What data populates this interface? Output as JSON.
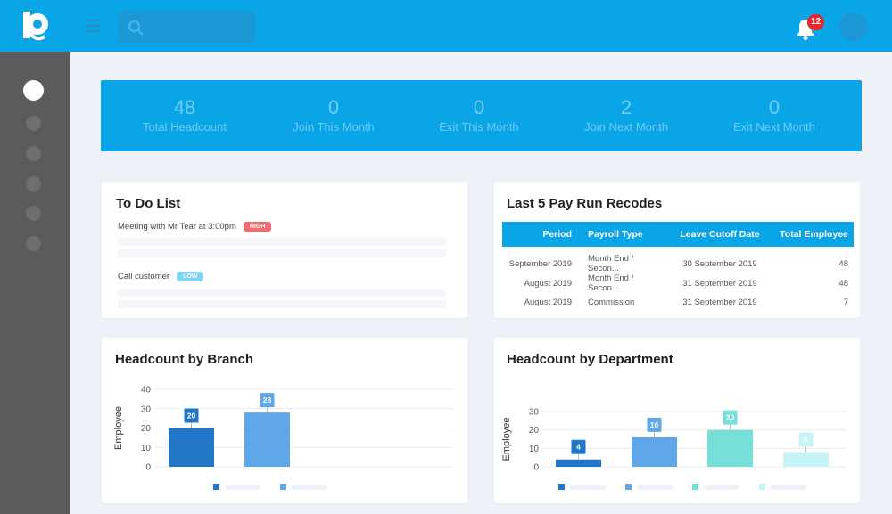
{
  "topbar": {
    "notification_count": "12"
  },
  "colors": {
    "primary": "#0aa5e6",
    "high_tag": "#f36b72",
    "low_tag": "#7fd3f5"
  },
  "icons": [
    "logo-icon",
    "menu-icon",
    "search-icon",
    "bell-icon",
    "avatar"
  ],
  "stats": [
    {
      "value": "48",
      "label": "Total Headcount"
    },
    {
      "value": "0",
      "label": "Join This Month"
    },
    {
      "value": "0",
      "label": "Exit This Month"
    },
    {
      "value": "2",
      "label": "Join Next Month"
    },
    {
      "value": "0",
      "label": "Exit Next Month"
    }
  ],
  "todo": {
    "title": "To Do List",
    "items": [
      {
        "text": "Meeting with Mr Tear at 3:00pm",
        "priority": "HIGH"
      },
      {
        "text": "Call customer",
        "priority": "LOW"
      }
    ]
  },
  "payrun": {
    "title": "Last 5 Pay Run Recodes",
    "headers": [
      "Period",
      "Payroll Type",
      "Leave Cutoff Date",
      "Total Employee"
    ],
    "rows": [
      [
        "September 2019",
        "Month End / Secon...",
        "30 September 2019",
        "48"
      ],
      [
        "August 2019",
        "Month End / Secon...",
        "31 September 2019",
        "48"
      ],
      [
        "August 2019",
        "Commission",
        "31 September 2019",
        "7"
      ]
    ]
  },
  "branch": {
    "title": "Headcount by Branch"
  },
  "department": {
    "title": "Headcount by Department"
  },
  "chart_data": [
    {
      "type": "bar",
      "title": "Headcount by Branch",
      "ylabel": "Employee",
      "ylim": [
        0,
        40
      ],
      "yticks": [
        0,
        10,
        20,
        30,
        40
      ],
      "values": [
        20,
        28
      ],
      "colors": [
        "#2176c7",
        "#60a7ea"
      ],
      "grid": true
    },
    {
      "type": "bar",
      "title": "Headcount by Department",
      "ylabel": "Employee",
      "ylim": [
        0,
        30
      ],
      "yticks": [
        0,
        10,
        20,
        30
      ],
      "values": [
        4,
        16,
        20,
        8
      ],
      "colors": [
        "#2176c7",
        "#60a7ea",
        "#76e0d8",
        "#c7f4f6"
      ],
      "grid": true
    }
  ]
}
